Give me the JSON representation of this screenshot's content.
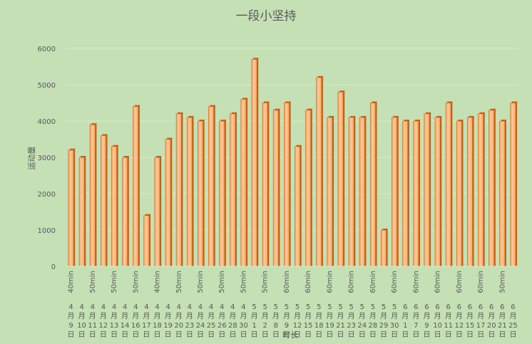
{
  "chart_data": {
    "type": "bar",
    "title": "一段小坚持",
    "ylabel": "运动量",
    "xlabel": "时长",
    "ylim": [
      0,
      6000
    ],
    "yticks": [
      0,
      1000,
      2000,
      3000,
      4000,
      5000,
      6000
    ],
    "grid": true,
    "colors": {
      "background": "#c5e0b4",
      "bar": "#f5a55b",
      "bar_light": "#fbc9a0",
      "bar_dark": "#c75f12",
      "grid": "#d9ead0",
      "text": "#595959"
    },
    "categories": [
      "4月9日",
      "4月10日",
      "4月11日",
      "4月12日",
      "4月13日",
      "4月14日",
      "4月16日",
      "4月17日",
      "4月18日",
      "4月19日",
      "4月20日",
      "4月23日",
      "4月24日",
      "4月25日",
      "4月26日",
      "4月28日",
      "4月30日",
      "5月1日",
      "5月2日",
      "5月8日",
      "5月9日",
      "5月12日",
      "5月15日",
      "5月18日",
      "5月19日",
      "5月21日",
      "5月23日",
      "5月24日",
      "5月28日",
      "5月29日",
      "5月30日",
      "6月1日",
      "6月7日",
      "6月9日",
      "6月10日",
      "6月11日",
      "6月12日",
      "6月15日",
      "6月17日",
      "6月20日",
      "6月21日",
      "6月25日"
    ],
    "category_parts": [
      [
        "4",
        "月",
        "9",
        "日"
      ],
      [
        "4",
        "月",
        "10",
        "日"
      ],
      [
        "4",
        "月",
        "11",
        "日"
      ],
      [
        "4",
        "月",
        "12",
        "日"
      ],
      [
        "4",
        "月",
        "13",
        "日"
      ],
      [
        "4",
        "月",
        "14",
        "日"
      ],
      [
        "4",
        "月",
        "16",
        "日"
      ],
      [
        "4",
        "月",
        "17",
        "日"
      ],
      [
        "4",
        "月",
        "18",
        "日"
      ],
      [
        "4",
        "月",
        "19",
        "日"
      ],
      [
        "4",
        "月",
        "20",
        "日"
      ],
      [
        "4",
        "月",
        "23",
        "日"
      ],
      [
        "4",
        "月",
        "24",
        "日"
      ],
      [
        "4",
        "月",
        "25",
        "日"
      ],
      [
        "4",
        "月",
        "26",
        "日"
      ],
      [
        "4",
        "月",
        "28",
        "日"
      ],
      [
        "4",
        "月",
        "30",
        "日"
      ],
      [
        "5",
        "月",
        "1",
        "日"
      ],
      [
        "5",
        "月",
        "2",
        "日"
      ],
      [
        "5",
        "月",
        "8",
        "日"
      ],
      [
        "5",
        "月",
        "9",
        "日"
      ],
      [
        "5",
        "月",
        "12",
        "日"
      ],
      [
        "5",
        "月",
        "15",
        "日"
      ],
      [
        "5",
        "月",
        "18",
        "日"
      ],
      [
        "5",
        "月",
        "19",
        "日"
      ],
      [
        "5",
        "月",
        "21",
        "日"
      ],
      [
        "5",
        "月",
        "23",
        "日"
      ],
      [
        "5",
        "月",
        "24",
        "日"
      ],
      [
        "5",
        "月",
        "28",
        "日"
      ],
      [
        "5",
        "月",
        "29",
        "日"
      ],
      [
        "5",
        "月",
        "30",
        "日"
      ],
      [
        "6",
        "月",
        "1",
        "日"
      ],
      [
        "6",
        "月",
        "7",
        "日"
      ],
      [
        "6",
        "月",
        "9",
        "日"
      ],
      [
        "6",
        "月",
        "10",
        "日"
      ],
      [
        "6",
        "月",
        "11",
        "日"
      ],
      [
        "6",
        "月",
        "12",
        "日"
      ],
      [
        "6",
        "月",
        "15",
        "日"
      ],
      [
        "6",
        "月",
        "17",
        "日"
      ],
      [
        "6",
        "月",
        "20",
        "日"
      ],
      [
        "6",
        "月",
        "21",
        "日"
      ],
      [
        "6",
        "月",
        "25",
        "日"
      ]
    ],
    "durations": [
      "40min",
      "",
      "50min",
      "",
      "50min",
      "",
      "50min",
      "",
      "40min",
      "",
      "50min",
      "",
      "50min",
      "",
      "50min",
      "",
      "50min",
      "",
      "50min",
      "",
      "60min",
      "",
      "60min",
      "",
      "60min",
      "",
      "60min",
      "",
      "60min",
      "",
      "60min",
      "",
      "60min",
      "",
      "60min",
      "",
      "60min",
      "",
      "60min",
      "",
      "50min",
      ""
    ],
    "values": [
      3200,
      3000,
      3900,
      3600,
      3300,
      3000,
      4400,
      1400,
      3000,
      3500,
      4200,
      4100,
      4000,
      4400,
      4000,
      4200,
      4600,
      5700,
      4500,
      4300,
      4500,
      3300,
      4300,
      5200,
      4100,
      4800,
      4100,
      4100,
      4500,
      1000,
      4100,
      4000,
      4000,
      4200,
      4100,
      4500,
      4000,
      4100,
      4200,
      4300,
      4000,
      4500
    ]
  }
}
